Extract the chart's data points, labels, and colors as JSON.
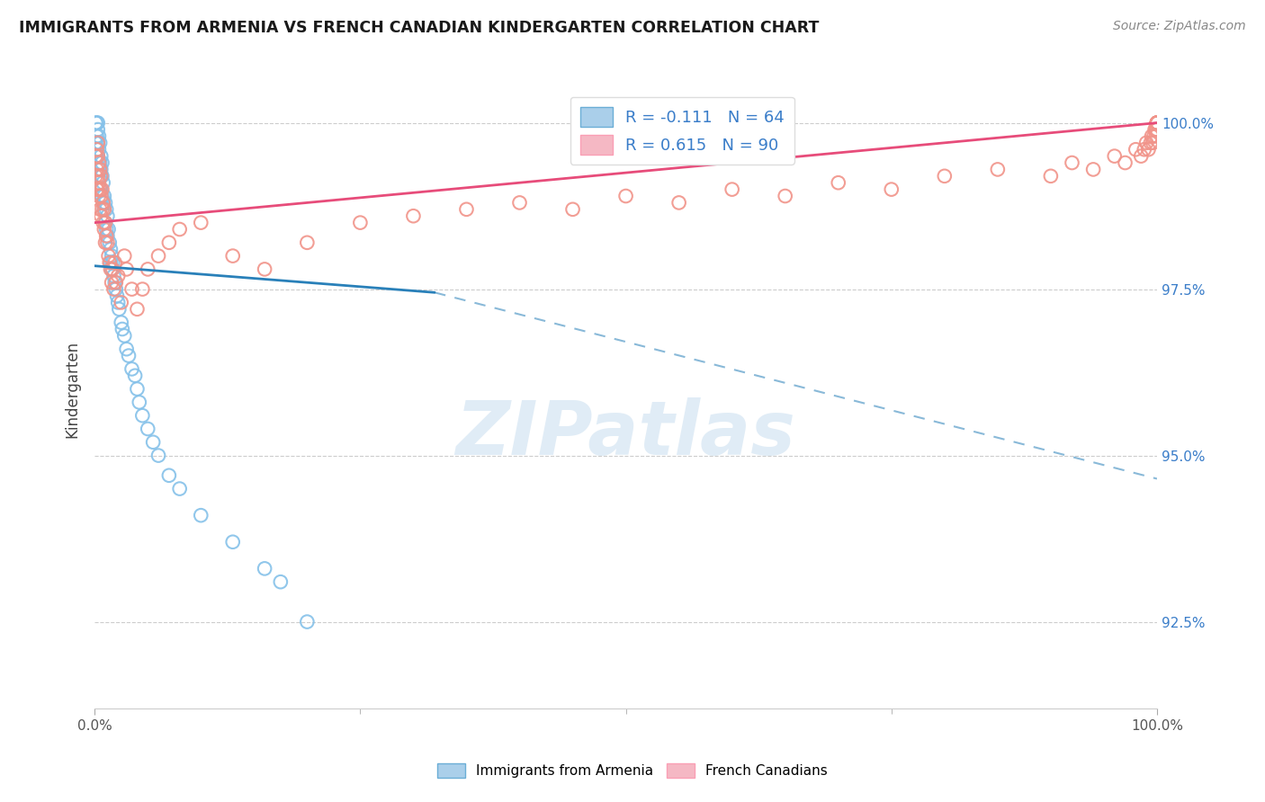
{
  "title": "IMMIGRANTS FROM ARMENIA VS FRENCH CANADIAN KINDERGARTEN CORRELATION CHART",
  "source": "Source: ZipAtlas.com",
  "ylabel": "Kindergarten",
  "legend_label1": "Immigrants from Armenia",
  "legend_label2": "French Canadians",
  "r1": -0.111,
  "n1": 64,
  "r2": 0.615,
  "n2": 90,
  "blue_color": "#85c1e9",
  "pink_color": "#f1948a",
  "blue_line_color": "#2980b9",
  "pink_line_color": "#e74c7a",
  "watermark_text": "ZIPatlas",
  "xlim": [
    0,
    1.0
  ],
  "ylim": [
    91.2,
    100.8
  ],
  "yticks": [
    92.5,
    95.0,
    97.5,
    100.0
  ],
  "blue_x": [
    0.001,
    0.001,
    0.002,
    0.002,
    0.002,
    0.003,
    0.003,
    0.003,
    0.003,
    0.004,
    0.004,
    0.004,
    0.005,
    0.005,
    0.005,
    0.006,
    0.006,
    0.006,
    0.007,
    0.007,
    0.007,
    0.008,
    0.008,
    0.009,
    0.009,
    0.01,
    0.01,
    0.011,
    0.011,
    0.012,
    0.012,
    0.013,
    0.014,
    0.015,
    0.015,
    0.016,
    0.016,
    0.017,
    0.018,
    0.019,
    0.02,
    0.021,
    0.022,
    0.023,
    0.025,
    0.026,
    0.028,
    0.03,
    0.032,
    0.035,
    0.038,
    0.04,
    0.042,
    0.045,
    0.05,
    0.055,
    0.06,
    0.07,
    0.08,
    0.1,
    0.13,
    0.16,
    0.175,
    0.2
  ],
  "blue_y": [
    100.0,
    99.7,
    100.0,
    99.8,
    99.5,
    100.0,
    99.9,
    99.7,
    99.5,
    99.8,
    99.6,
    99.3,
    99.7,
    99.4,
    99.2,
    99.5,
    99.3,
    99.0,
    99.4,
    99.2,
    98.9,
    99.1,
    98.8,
    98.9,
    98.7,
    98.8,
    98.5,
    98.7,
    98.4,
    98.6,
    98.3,
    98.4,
    98.2,
    98.1,
    97.9,
    98.0,
    97.8,
    97.9,
    97.7,
    97.6,
    97.5,
    97.4,
    97.3,
    97.2,
    97.0,
    96.9,
    96.8,
    96.6,
    96.5,
    96.3,
    96.2,
    96.0,
    95.8,
    95.6,
    95.4,
    95.2,
    95.0,
    94.7,
    94.5,
    94.1,
    93.7,
    93.3,
    93.1,
    92.5
  ],
  "pink_x": [
    0.001,
    0.001,
    0.002,
    0.002,
    0.002,
    0.003,
    0.003,
    0.003,
    0.003,
    0.004,
    0.004,
    0.004,
    0.005,
    0.005,
    0.005,
    0.006,
    0.006,
    0.006,
    0.007,
    0.007,
    0.008,
    0.008,
    0.009,
    0.009,
    0.01,
    0.01,
    0.011,
    0.012,
    0.013,
    0.014,
    0.015,
    0.016,
    0.017,
    0.018,
    0.019,
    0.02,
    0.022,
    0.025,
    0.028,
    0.03,
    0.035,
    0.04,
    0.045,
    0.05,
    0.06,
    0.07,
    0.08,
    0.1,
    0.13,
    0.16,
    0.2,
    0.25,
    0.3,
    0.35,
    0.4,
    0.45,
    0.5,
    0.55,
    0.6,
    0.65,
    0.7,
    0.75,
    0.8,
    0.85,
    0.9,
    0.92,
    0.94,
    0.96,
    0.97,
    0.98,
    0.985,
    0.988,
    0.99,
    0.992,
    0.994,
    0.995,
    0.996,
    0.997,
    0.998,
    0.999,
    0.999,
    1.0,
    1.0,
    1.0,
    1.0,
    1.0,
    1.0,
    1.0,
    1.0,
    1.0
  ],
  "pink_y": [
    99.5,
    99.2,
    99.6,
    99.3,
    99.0,
    99.7,
    99.5,
    99.2,
    99.0,
    99.4,
    99.1,
    98.9,
    99.3,
    99.0,
    98.7,
    99.2,
    98.9,
    98.6,
    99.0,
    98.7,
    98.8,
    98.5,
    98.7,
    98.4,
    98.5,
    98.2,
    98.3,
    98.2,
    98.0,
    97.9,
    97.8,
    97.6,
    97.8,
    97.5,
    97.9,
    97.6,
    97.7,
    97.3,
    98.0,
    97.8,
    97.5,
    97.2,
    97.5,
    97.8,
    98.0,
    98.2,
    98.4,
    98.5,
    98.0,
    97.8,
    98.2,
    98.5,
    98.6,
    98.7,
    98.8,
    98.7,
    98.9,
    98.8,
    99.0,
    98.9,
    99.1,
    99.0,
    99.2,
    99.3,
    99.2,
    99.4,
    99.3,
    99.5,
    99.4,
    99.6,
    99.5,
    99.6,
    99.7,
    99.6,
    99.7,
    99.8,
    99.7,
    99.8,
    99.9,
    99.8,
    99.9,
    99.9,
    100.0,
    100.0,
    100.0,
    100.0,
    100.0,
    100.0,
    100.0,
    100.0
  ],
  "blue_line": {
    "x0": 0.0,
    "y0": 97.85,
    "x1": 0.32,
    "y1": 97.45,
    "xd0": 0.32,
    "yd0": 97.45,
    "xd1": 1.0,
    "yd1": 94.65
  },
  "pink_line": {
    "x0": 0.0,
    "y0": 98.5,
    "x1": 1.0,
    "y1": 100.0
  }
}
